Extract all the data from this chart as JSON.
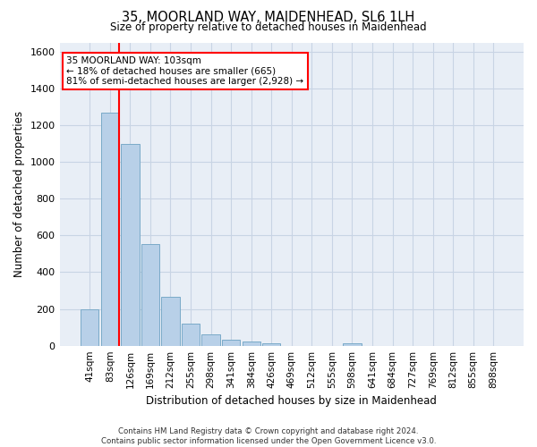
{
  "title": "35, MOORLAND WAY, MAIDENHEAD, SL6 1LH",
  "subtitle": "Size of property relative to detached houses in Maidenhead",
  "xlabel": "Distribution of detached houses by size in Maidenhead",
  "ylabel": "Number of detached properties",
  "footer_line1": "Contains HM Land Registry data © Crown copyright and database right 2024.",
  "footer_line2": "Contains public sector information licensed under the Open Government Licence v3.0.",
  "categories": [
    "41sqm",
    "83sqm",
    "126sqm",
    "169sqm",
    "212sqm",
    "255sqm",
    "298sqm",
    "341sqm",
    "384sqm",
    "426sqm",
    "469sqm",
    "512sqm",
    "555sqm",
    "598sqm",
    "641sqm",
    "684sqm",
    "727sqm",
    "769sqm",
    "812sqm",
    "855sqm",
    "898sqm"
  ],
  "values": [
    200,
    1270,
    1100,
    555,
    265,
    120,
    60,
    32,
    22,
    14,
    0,
    0,
    0,
    14,
    0,
    0,
    0,
    0,
    0,
    0,
    0
  ],
  "bar_color": "#b8d0e8",
  "bar_edge_color": "#7aaac8",
  "grid_color": "#c8d4e4",
  "background_color": "#e8eef6",
  "property_line_bin": 1.46,
  "annotation_line1": "35 MOORLAND WAY: 103sqm",
  "annotation_line2": "← 18% of detached houses are smaller (665)",
  "annotation_line3": "81% of semi-detached houses are larger (2,928) →",
  "ylim": [
    0,
    1650
  ],
  "yticks": [
    0,
    200,
    400,
    600,
    800,
    1000,
    1200,
    1400,
    1600
  ]
}
